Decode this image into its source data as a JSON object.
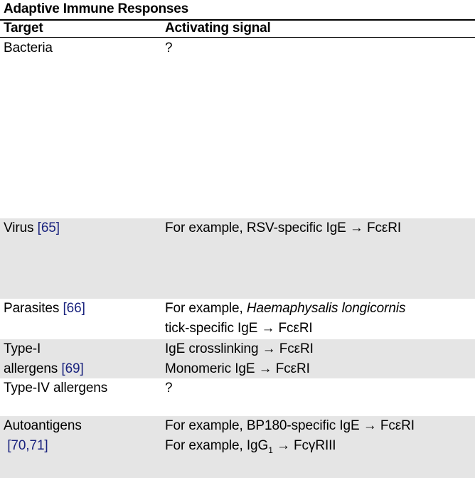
{
  "caption": "Adaptive Immune Responses",
  "headers": {
    "target": "Target",
    "signal": "Activating signal"
  },
  "rows": [
    {
      "target": "Bacteria",
      "signal": "?"
    },
    {
      "target": "Virus",
      "ref": "[65]",
      "signal": "For example, RSV-specific IgE → FcεRI"
    },
    {
      "target": "Parasites",
      "ref": "[66]",
      "signal_prefix": "For example, ",
      "signal_italic": "Haemaphysalis longicornis",
      "signal_line2": "tick-specific IgE → FcεRI"
    },
    {
      "target_line1": "Type-I",
      "target_line2": "allergens",
      "ref": "[69]",
      "signal_line1": "IgE crosslinking → FcεRI",
      "signal_line2": "Monomeric IgE → FcεRI"
    },
    {
      "target": "Type-IV allergens",
      "signal": "?"
    },
    {
      "target": "Autoantigens",
      "ref": "[70,71]",
      "signal_line1": "For example, BP180-specific IgE → FcεRI",
      "signal_line2_pre": "For example, IgG",
      "signal_line2_sub": "1",
      "signal_line2_post": " → FcγRIII"
    }
  ]
}
